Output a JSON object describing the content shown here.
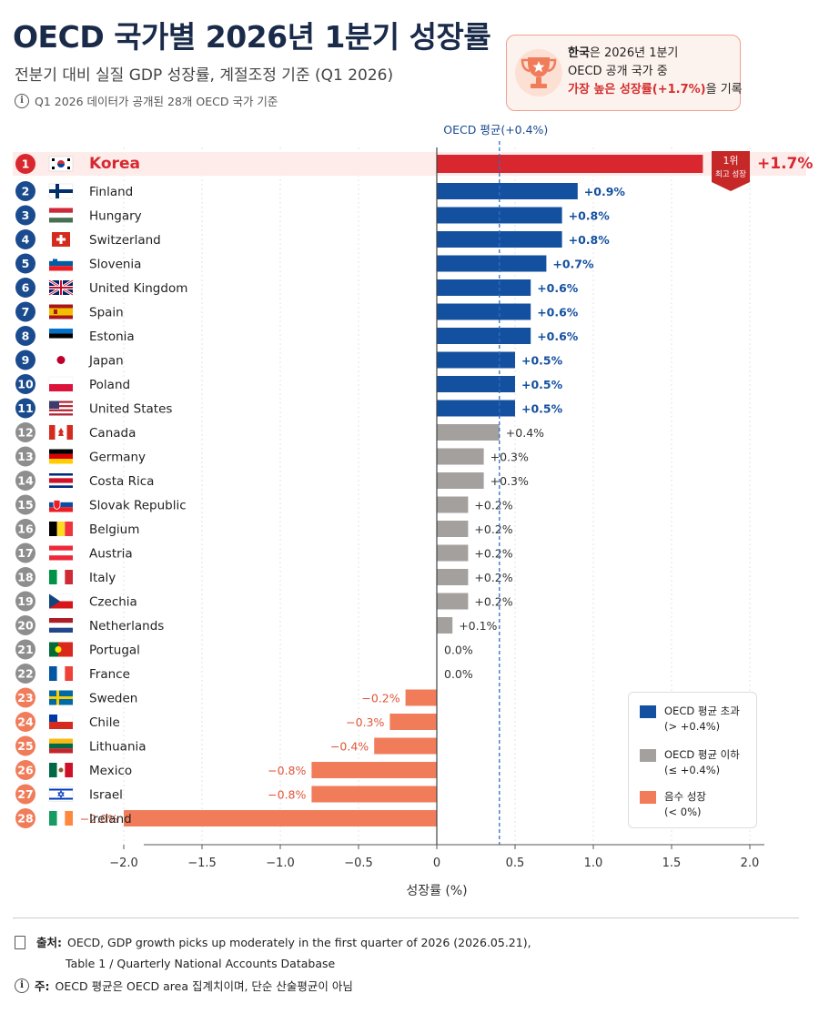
{
  "header": {
    "title": "OECD 국가별 2026년 1분기 성장률",
    "subtitle": "전분기 대비 실질 GDP 성장률, 계절조정 기준 (Q1 2026)",
    "note": "Q1 2026 데이터가 공개된 28개 OECD 국가 기준"
  },
  "callout": {
    "line1_bold": "한국",
    "line1_rest": "은 2026년 1분기",
    "line2": "OECD 공개 국가 중",
    "line3_red": "가장 높은 성장률(+1.7%)",
    "line3_rest": "을 기록"
  },
  "badge": {
    "line1": "1위",
    "line2": "최고 성장"
  },
  "colors": {
    "above": "#1450a0",
    "below": "#a3a09d",
    "negative": "#f07c5a",
    "top": "#d8272f",
    "avg_line": "#2e6fc0"
  },
  "legend": [
    {
      "label": "OECD 평균 초과\n(> +0.4%)",
      "color": "#1450a0"
    },
    {
      "label": "OECD 평균 이하\n(≤ +0.4%)",
      "color": "#a3a09d"
    },
    {
      "label": "음수 성장\n(< 0%)",
      "color": "#f07c5a"
    }
  ],
  "chart_data": {
    "type": "bar",
    "orientation": "horizontal",
    "xlabel": "성장률 (%)",
    "xlim": [
      -2.0,
      2.0
    ],
    "xticks": [
      -2.0,
      -1.5,
      -1.0,
      -0.5,
      0,
      0.5,
      1.0,
      1.5,
      2.0
    ],
    "xtick_labels": [
      "−2.0",
      "−1.5",
      "−1.0",
      "−0.5",
      "0",
      "0.5",
      "1.0",
      "1.5",
      "2.0"
    ],
    "reference_line": {
      "label": "OECD 평균(+0.4%)",
      "value": 0.4
    },
    "grid": true,
    "rows": [
      {
        "rank": 1,
        "country": "Korea",
        "flag": "kr",
        "value": 1.7,
        "label": "+1.7%",
        "group": "top"
      },
      {
        "rank": 2,
        "country": "Finland",
        "flag": "fi",
        "value": 0.9,
        "label": "+0.9%",
        "group": "above"
      },
      {
        "rank": 3,
        "country": "Hungary",
        "flag": "hu",
        "value": 0.8,
        "label": "+0.8%",
        "group": "above"
      },
      {
        "rank": 4,
        "country": "Switzerland",
        "flag": "ch",
        "value": 0.8,
        "label": "+0.8%",
        "group": "above"
      },
      {
        "rank": 5,
        "country": "Slovenia",
        "flag": "si",
        "value": 0.7,
        "label": "+0.7%",
        "group": "above"
      },
      {
        "rank": 6,
        "country": "United Kingdom",
        "flag": "gb",
        "value": 0.6,
        "label": "+0.6%",
        "group": "above"
      },
      {
        "rank": 7,
        "country": "Spain",
        "flag": "es",
        "value": 0.6,
        "label": "+0.6%",
        "group": "above"
      },
      {
        "rank": 8,
        "country": "Estonia",
        "flag": "ee",
        "value": 0.6,
        "label": "+0.6%",
        "group": "above"
      },
      {
        "rank": 9,
        "country": "Japan",
        "flag": "jp",
        "value": 0.5,
        "label": "+0.5%",
        "group": "above"
      },
      {
        "rank": 10,
        "country": "Poland",
        "flag": "pl",
        "value": 0.5,
        "label": "+0.5%",
        "group": "above"
      },
      {
        "rank": 11,
        "country": "United States",
        "flag": "us",
        "value": 0.5,
        "label": "+0.5%",
        "group": "above"
      },
      {
        "rank": 12,
        "country": "Canada",
        "flag": "ca",
        "value": 0.4,
        "label": "+0.4%",
        "group": "below"
      },
      {
        "rank": 13,
        "country": "Germany",
        "flag": "de",
        "value": 0.3,
        "label": "+0.3%",
        "group": "below"
      },
      {
        "rank": 14,
        "country": "Costa Rica",
        "flag": "cr",
        "value": 0.3,
        "label": "+0.3%",
        "group": "below"
      },
      {
        "rank": 15,
        "country": "Slovak Republic",
        "flag": "sk",
        "value": 0.2,
        "label": "+0.2%",
        "group": "below"
      },
      {
        "rank": 16,
        "country": "Belgium",
        "flag": "be",
        "value": 0.2,
        "label": "+0.2%",
        "group": "below"
      },
      {
        "rank": 17,
        "country": "Austria",
        "flag": "at",
        "value": 0.2,
        "label": "+0.2%",
        "group": "below"
      },
      {
        "rank": 18,
        "country": "Italy",
        "flag": "it",
        "value": 0.2,
        "label": "+0.2%",
        "group": "below"
      },
      {
        "rank": 19,
        "country": "Czechia",
        "flag": "cz",
        "value": 0.2,
        "label": "+0.2%",
        "group": "below"
      },
      {
        "rank": 20,
        "country": "Netherlands",
        "flag": "nl",
        "value": 0.1,
        "label": "+0.1%",
        "group": "below"
      },
      {
        "rank": 21,
        "country": "Portugal",
        "flag": "pt",
        "value": 0.0,
        "label": "0.0%",
        "group": "below"
      },
      {
        "rank": 22,
        "country": "France",
        "flag": "fr",
        "value": 0.0,
        "label": "0.0%",
        "group": "below"
      },
      {
        "rank": 23,
        "country": "Sweden",
        "flag": "se",
        "value": -0.2,
        "label": "−0.2%",
        "group": "negative"
      },
      {
        "rank": 24,
        "country": "Chile",
        "flag": "cl",
        "value": -0.3,
        "label": "−0.3%",
        "group": "negative"
      },
      {
        "rank": 25,
        "country": "Lithuania",
        "flag": "lt",
        "value": -0.4,
        "label": "−0.4%",
        "group": "negative"
      },
      {
        "rank": 26,
        "country": "Mexico",
        "flag": "mx",
        "value": -0.8,
        "label": "−0.8%",
        "group": "negative"
      },
      {
        "rank": 27,
        "country": "Israel",
        "flag": "il",
        "value": -0.8,
        "label": "−0.8%",
        "group": "negative"
      },
      {
        "rank": 28,
        "country": "Ireland",
        "flag": "ie",
        "value": -2.0,
        "label": "−2.0%",
        "group": "negative"
      }
    ]
  },
  "footer": {
    "source_label": "출처:",
    "source_line1": "OECD, GDP growth picks up moderately in the first quarter of 2026 (2026.05.21),",
    "source_line2": "Table 1 / Quarterly National Accounts Database",
    "note_label": "주:",
    "note_text": "OECD 평균은 OECD area 집계치이며, 단순 산술평균이 아님"
  }
}
